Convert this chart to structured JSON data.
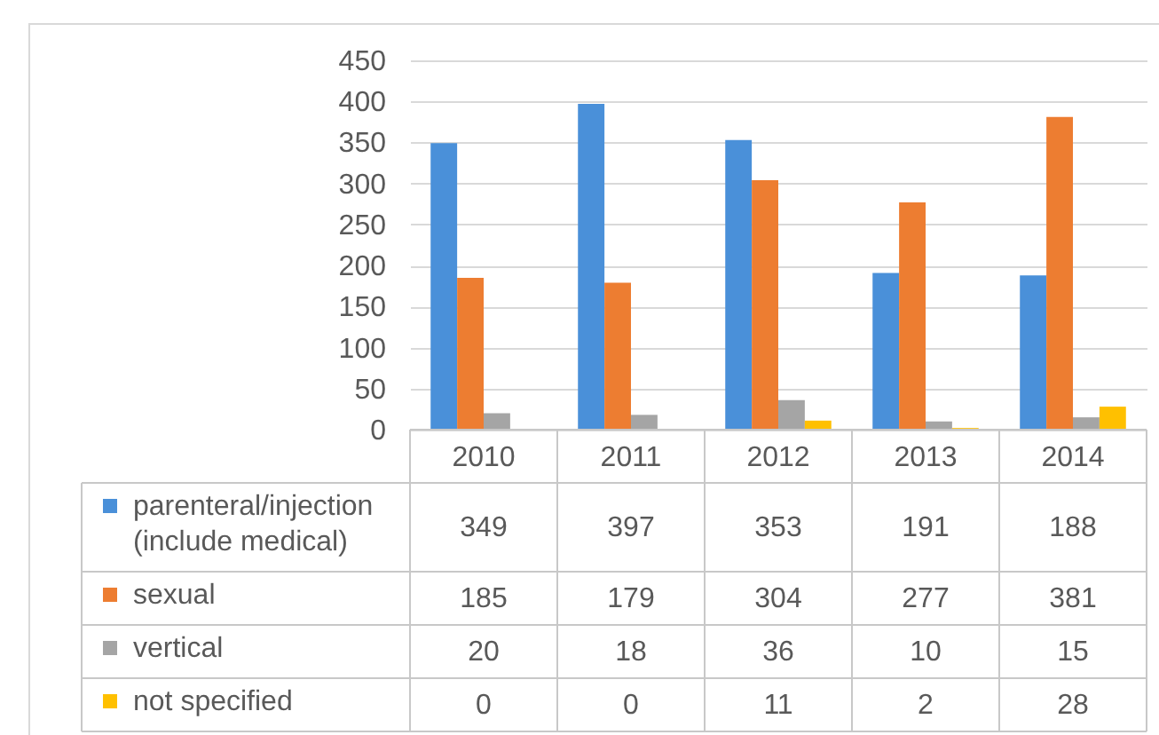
{
  "chart_data": {
    "type": "bar",
    "categories": [
      "2010",
      "2011",
      "2012",
      "2013",
      "2014"
    ],
    "series": [
      {
        "name": "parenteral/injection (include medical)",
        "color": "#4a90d9",
        "values": [
          349,
          397,
          353,
          191,
          188
        ]
      },
      {
        "name": "sexual",
        "color": "#ed7d31",
        "values": [
          185,
          179,
          304,
          277,
          381
        ]
      },
      {
        "name": "vertical",
        "color": "#a5a5a5",
        "values": [
          20,
          18,
          36,
          10,
          15
        ]
      },
      {
        "name": "not specified",
        "color": "#ffc000",
        "values": [
          0,
          0,
          11,
          2,
          28
        ]
      }
    ],
    "ylim": [
      0,
      450
    ],
    "yticks": [
      0,
      50,
      100,
      150,
      200,
      250,
      300,
      350,
      400,
      450
    ],
    "grid": "y",
    "legend": "bottom left",
    "data_labels": true
  }
}
